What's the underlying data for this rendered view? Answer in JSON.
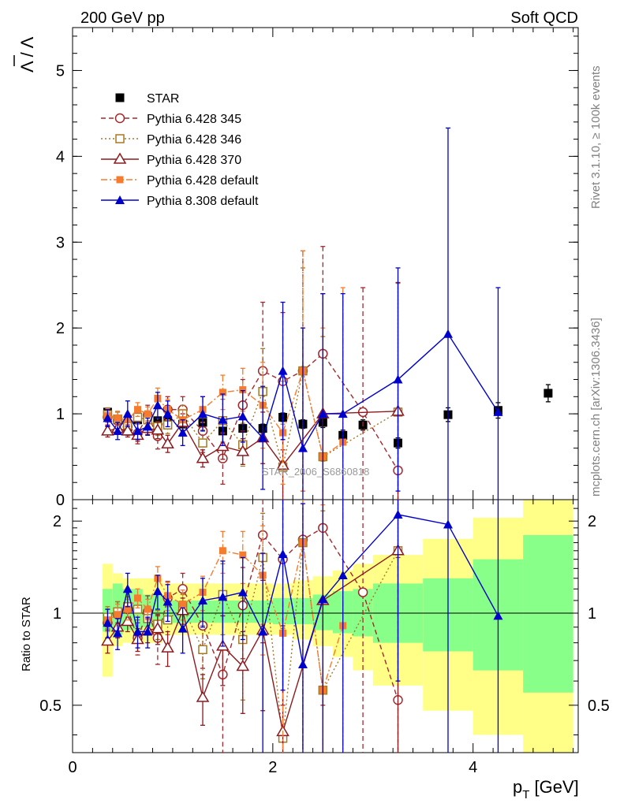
{
  "chart_data": {
    "type": "scatter",
    "header_left": "200 GeV pp",
    "header_right": "Soft QCD",
    "ylabel": "Λ̄ / Λ",
    "ylabel_parts": {
      "bar": "Λ",
      "sep": " / ",
      "plain": "Λ"
    },
    "xlabel": "p_T [GeV]",
    "xlabel_parts": {
      "p": "p",
      "sub": "T",
      "unit": " [GeV]"
    },
    "ratio_ylabel": "Ratio to STAR",
    "analysis_id": "STAR_2006_S6860818",
    "side_note_1": "Rivet 3.1.10, ≥ 100k events",
    "side_note_2": "mcplots.cern.ch [arXiv:1306.3436]",
    "xlim": [
      0,
      5.05
    ],
    "ylim_main": [
      0,
      5.5
    ],
    "ylim_ratio": [
      0.35,
      2.35
    ],
    "x_ticks": [
      "0",
      "2",
      "4"
    ],
    "y_ticks_main": [
      "0",
      "1",
      "2",
      "3",
      "4",
      "5"
    ],
    "y_ticks_ratio": [
      "0.5",
      "1",
      "2"
    ],
    "legend": {
      "placement": "upper-left",
      "entries": [
        "STAR",
        "Pythia 6.428 345",
        "Pythia 6.428 346",
        "Pythia 6.428 370",
        "Pythia 6.428 default",
        "Pythia 8.308 default"
      ]
    },
    "band_bins": [
      0.3,
      0.4,
      0.5,
      0.6,
      0.7,
      0.8,
      0.9,
      1.0,
      1.2,
      1.4,
      1.6,
      1.8,
      2.0,
      2.2,
      2.4,
      2.6,
      2.8,
      3.0,
      3.5,
      4.0,
      4.5,
      5.0
    ],
    "band_inner": [
      [
        0.87,
        1.2
      ],
      [
        0.85,
        1.25
      ],
      [
        0.88,
        1.2
      ],
      [
        0.88,
        1.2
      ],
      [
        0.9,
        1.15
      ],
      [
        0.9,
        1.15
      ],
      [
        0.92,
        1.12
      ],
      [
        0.93,
        1.1
      ],
      [
        0.93,
        1.1
      ],
      [
        0.93,
        1.1
      ],
      [
        0.93,
        1.1
      ],
      [
        0.93,
        1.1
      ],
      [
        0.92,
        1.12
      ],
      [
        0.92,
        1.12
      ],
      [
        0.88,
        1.15
      ],
      [
        0.86,
        1.18
      ],
      [
        0.84,
        1.2
      ],
      [
        0.8,
        1.25
      ],
      [
        0.75,
        1.3
      ],
      [
        0.65,
        1.5
      ],
      [
        0.55,
        1.8
      ]
    ],
    "band_outer": [
      [
        0.62,
        1.45
      ],
      [
        0.78,
        1.35
      ],
      [
        0.8,
        1.3
      ],
      [
        0.8,
        1.3
      ],
      [
        0.8,
        1.3
      ],
      [
        0.8,
        1.3
      ],
      [
        0.85,
        1.25
      ],
      [
        0.85,
        1.25
      ],
      [
        0.85,
        1.25
      ],
      [
        0.85,
        1.25
      ],
      [
        0.85,
        1.25
      ],
      [
        0.85,
        1.25
      ],
      [
        0.85,
        1.25
      ],
      [
        0.82,
        1.28
      ],
      [
        0.78,
        1.32
      ],
      [
        0.72,
        1.38
      ],
      [
        0.65,
        1.45
      ],
      [
        0.58,
        1.55
      ],
      [
        0.48,
        1.75
      ],
      [
        0.4,
        2.05
      ],
      [
        0.35,
        2.35
      ]
    ],
    "series": [
      {
        "name": "STAR",
        "key": "star",
        "color": "#000000",
        "marker": "square",
        "line": "none",
        "x": [
          0.35,
          0.45,
          0.55,
          0.65,
          0.75,
          0.85,
          0.95,
          1.1,
          1.3,
          1.5,
          1.7,
          1.9,
          2.1,
          2.3,
          2.5,
          2.7,
          2.9,
          3.25,
          3.75,
          4.25,
          4.75
        ],
        "y": [
          1.02,
          0.93,
          0.83,
          0.93,
          0.97,
          0.92,
          0.92,
          0.88,
          0.9,
          0.8,
          0.83,
          0.83,
          0.96,
          0.88,
          0.9,
          0.75,
          0.87,
          0.66,
          0.99,
          1.04,
          1.24
        ],
        "err": [
          0.03,
          0.03,
          0.03,
          0.03,
          0.03,
          0.03,
          0.03,
          0.03,
          0.04,
          0.04,
          0.04,
          0.05,
          0.05,
          0.05,
          0.06,
          0.06,
          0.06,
          0.06,
          0.08,
          0.09,
          0.1
        ],
        "ratio": []
      },
      {
        "name": "Pythia 6.428 345",
        "key": "p345",
        "color": "#a3282d",
        "marker": "open-circle",
        "line": "dashed",
        "x": [
          0.35,
          0.45,
          0.55,
          0.65,
          0.75,
          0.85,
          0.95,
          1.1,
          1.3,
          1.5,
          1.7,
          1.9,
          2.1,
          2.3,
          2.5,
          2.9,
          3.25
        ],
        "y": [
          0.96,
          0.92,
          0.85,
          0.77,
          0.98,
          0.74,
          1.05,
          1.05,
          0.8,
          0.48,
          1.1,
          1.5,
          1.38,
          1.5,
          1.7,
          1.02,
          0.34
        ],
        "err": [
          0.1,
          0.1,
          0.1,
          0.12,
          0.12,
          0.15,
          0.15,
          0.15,
          0.25,
          0.3,
          0.3,
          0.8,
          0.8,
          1.4,
          1.25,
          1.45,
          0.7
        ],
        "ratio": [
          0.93,
          0.99,
          1.03,
          0.83,
          1.01,
          0.83,
          1.12,
          1.2,
          0.91,
          0.63,
          1.06,
          1.8,
          1.5,
          1.74,
          1.9,
          1.17,
          0.52
        ],
        "ratio_err": [
          0.1,
          0.1,
          0.1,
          0.1,
          0.13,
          0.15,
          0.15,
          0.15,
          0.25,
          0.35,
          0.35,
          1.0,
          1.0,
          1.6,
          1.4,
          1.7,
          1.0
        ]
      },
      {
        "name": "Pythia 6.428 346",
        "key": "p346",
        "color": "#a57822",
        "marker": "open-square",
        "line": "dotted",
        "x": [
          0.35,
          0.45,
          0.55,
          0.65,
          0.75,
          0.85,
          0.95,
          1.1,
          1.3,
          1.5,
          1.7,
          1.9,
          2.1,
          2.3,
          2.5,
          3.25
        ],
        "y": [
          0.99,
          0.94,
          0.87,
          0.96,
          0.93,
          0.85,
          0.87,
          1.0,
          0.66,
          0.92,
          0.64,
          1.26,
          0.38,
          1.5,
          0.5,
          1.02
        ],
        "err": [
          0.08,
          0.08,
          0.08,
          0.08,
          0.08,
          0.1,
          0.1,
          0.1,
          0.15,
          0.25,
          0.25,
          0.5,
          0.5,
          1.2,
          1.4,
          1.5
        ],
        "ratio": [
          0.97,
          1.01,
          1.05,
          1.03,
          0.96,
          0.92,
          0.95,
          1.05,
          0.76,
          1.15,
          0.82,
          1.52,
          0.39,
          1.7,
          0.56,
          1.6
        ],
        "ratio_err": [
          0.08,
          0.08,
          0.08,
          0.08,
          0.08,
          0.1,
          0.1,
          0.1,
          0.15,
          0.3,
          0.3,
          0.6,
          0.5,
          1.4,
          1.6,
          1.6
        ]
      },
      {
        "name": "Pythia 6.428 370",
        "key": "p370",
        "color": "#8b1a1e",
        "marker": "open-triangle",
        "line": "solid",
        "x": [
          0.35,
          0.45,
          0.55,
          0.65,
          0.75,
          0.85,
          0.95,
          1.1,
          1.3,
          1.5,
          1.7,
          1.9,
          2.1,
          2.5,
          3.25
        ],
        "y": [
          0.8,
          0.83,
          0.8,
          0.75,
          0.83,
          0.81,
          0.65,
          0.9,
          0.48,
          0.62,
          0.56,
          0.72,
          0.4,
          1.0,
          1.03
        ],
        "err": [
          0.07,
          0.07,
          0.07,
          0.07,
          0.07,
          0.1,
          0.1,
          0.1,
          0.1,
          0.15,
          0.15,
          0.3,
          0.4,
          1.4,
          1.5
        ],
        "ratio": [
          0.81,
          0.9,
          0.94,
          0.82,
          0.88,
          0.89,
          0.77,
          1.02,
          0.53,
          0.78,
          0.67,
          0.88,
          0.41,
          1.1,
          1.6
        ],
        "ratio_err": [
          0.07,
          0.07,
          0.07,
          0.07,
          0.08,
          0.1,
          0.1,
          0.1,
          0.1,
          0.2,
          0.2,
          0.4,
          0.5,
          1.5,
          1.6
        ]
      },
      {
        "name": "Pythia 6.428 default",
        "key": "p6def",
        "color": "#f57b2f",
        "marker": "filled-square",
        "line": "dashdot",
        "x": [
          0.35,
          0.45,
          0.55,
          0.65,
          0.75,
          0.85,
          0.95,
          1.1,
          1.3,
          1.5,
          1.7,
          1.9,
          2.1,
          2.3,
          2.5,
          2.7
        ],
        "y": [
          0.98,
          0.95,
          0.93,
          1.05,
          1.0,
          1.18,
          1.05,
          0.93,
          1.05,
          1.25,
          1.28,
          1.1,
          0.78,
          1.5,
          0.5,
          0.67
        ],
        "err": [
          0.08,
          0.08,
          0.08,
          0.08,
          0.08,
          0.12,
          0.12,
          0.12,
          0.15,
          0.2,
          0.25,
          0.5,
          0.6,
          1.4,
          1.5,
          1.8
        ],
        "ratio": [
          0.95,
          0.99,
          1.03,
          1.12,
          1.03,
          1.3,
          1.14,
          1.07,
          1.17,
          1.6,
          1.55,
          1.33,
          0.86,
          1.7,
          0.56,
          0.91
        ],
        "ratio_err": [
          0.08,
          0.08,
          0.08,
          0.08,
          0.08,
          0.12,
          0.12,
          0.12,
          0.15,
          0.25,
          0.3,
          0.6,
          0.7,
          1.6,
          1.7,
          1.9
        ]
      },
      {
        "name": "Pythia 8.308 default",
        "key": "p8def",
        "color": "#0000cc",
        "marker": "filled-triangle",
        "line": "solid",
        "x": [
          0.35,
          0.45,
          0.55,
          0.65,
          0.75,
          0.85,
          0.95,
          1.1,
          1.3,
          1.5,
          1.7,
          1.9,
          2.1,
          2.3,
          2.5,
          2.7,
          3.25,
          3.75,
          4.25
        ],
        "y": [
          0.95,
          0.8,
          1.0,
          0.8,
          0.85,
          1.1,
          1.0,
          0.78,
          1.0,
          0.93,
          0.97,
          0.72,
          1.5,
          0.6,
          1.0,
          1.0,
          1.4,
          1.93,
          1.02
        ],
        "err": [
          0.1,
          0.1,
          0.15,
          0.1,
          0.1,
          0.15,
          0.15,
          0.15,
          0.2,
          0.3,
          0.3,
          0.6,
          0.8,
          1.4,
          1.4,
          1.4,
          1.3,
          2.4,
          1.45
        ],
        "ratio": [
          0.93,
          0.86,
          1.2,
          0.87,
          0.87,
          1.18,
          1.09,
          0.89,
          1.1,
          1.13,
          1.17,
          0.87,
          1.56,
          0.68,
          1.11,
          1.33,
          2.1,
          1.95,
          0.98
        ],
        "ratio_err": [
          0.1,
          0.1,
          0.15,
          0.1,
          0.1,
          0.15,
          0.15,
          0.15,
          0.2,
          0.35,
          0.35,
          0.7,
          1.0,
          1.6,
          1.6,
          1.6,
          1.5,
          2.5,
          1.5
        ]
      }
    ]
  }
}
